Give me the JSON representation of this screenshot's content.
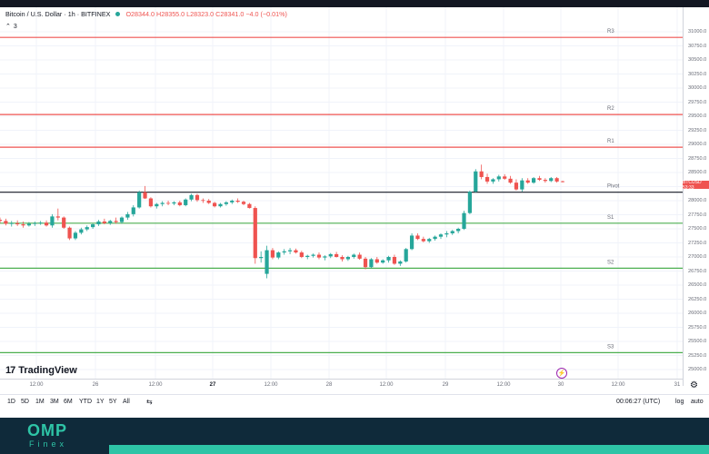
{
  "legend": {
    "symbol": "Bitcoin / U.S. Dollar · 1h · BITFINEX",
    "ohlc": "O28344.0 H28355.0 L28323.0 C28341.0 −4.0 (−0.01%)",
    "indicator_count": "3"
  },
  "price_axis": {
    "labels": [
      "31000.0",
      "30750.0",
      "30500.0",
      "30250.0",
      "30000.0",
      "29750.0",
      "29500.0",
      "29250.0",
      "29000.0",
      "28750.0",
      "28500.0",
      "28250.0",
      "28000.0",
      "27750.0",
      "27500.0",
      "27250.0",
      "27000.0",
      "26750.0",
      "26500.0",
      "26250.0",
      "26000.0",
      "25750.0",
      "25500.0",
      "25250.0",
      "25000.0"
    ],
    "current_tag": "BTCUSD 53:33"
  },
  "pivot_levels": [
    {
      "label": "R3",
      "price": 30900,
      "color": "#ef5350"
    },
    {
      "label": "R2",
      "price": 29530,
      "color": "#ef5350"
    },
    {
      "label": "R1",
      "price": 28950,
      "color": "#ef5350"
    },
    {
      "label": "Pivot",
      "price": 28150,
      "color": "#131722"
    },
    {
      "label": "S1",
      "price": 27600,
      "color": "#4caf50"
    },
    {
      "label": "S2",
      "price": 26800,
      "color": "#4caf50"
    },
    {
      "label": "S3",
      "price": 25300,
      "color": "#4caf50"
    }
  ],
  "time_axis": {
    "labels": [
      {
        "text": "12:00",
        "bold": false
      },
      {
        "text": "26",
        "bold": false
      },
      {
        "text": "12:00",
        "bold": false
      },
      {
        "text": "27",
        "bold": true
      },
      {
        "text": "12:00",
        "bold": false
      },
      {
        "text": "28",
        "bold": false
      },
      {
        "text": "12:00",
        "bold": false
      },
      {
        "text": "29",
        "bold": false
      },
      {
        "text": "12:00",
        "bold": false
      },
      {
        "text": "30",
        "bold": false
      },
      {
        "text": "12:00",
        "bold": false
      },
      {
        "text": "31",
        "bold": false
      }
    ]
  },
  "brand_logo": "TradingView",
  "bottom_toolbar": {
    "ranges": [
      "1D",
      "5D",
      "1M",
      "3M",
      "6M",
      "YTD",
      "1Y",
      "5Y",
      "All"
    ],
    "clock": "00:06:27 (UTC)",
    "log_label": "log",
    "auto_label": "auto"
  },
  "footer": {
    "brand_top": "OMP",
    "brand_bottom": "Finex"
  },
  "colors": {
    "up": "#26a69a",
    "down": "#ef5350",
    "bg": "#ffffff"
  },
  "chart_data": {
    "type": "candlestick",
    "ylim": [
      25000,
      31000
    ],
    "candles": [
      [
        27660,
        27700,
        27600,
        27640
      ],
      [
        27640,
        27680,
        27560,
        27590
      ],
      [
        27590,
        27640,
        27540,
        27600
      ],
      [
        27600,
        27650,
        27550,
        27580
      ],
      [
        27580,
        27630,
        27520,
        27560
      ],
      [
        27560,
        27620,
        27540,
        27590
      ],
      [
        27590,
        27630,
        27550,
        27600
      ],
      [
        27600,
        27640,
        27570,
        27610
      ],
      [
        27610,
        27650,
        27540,
        27560
      ],
      [
        27560,
        27760,
        27520,
        27720
      ],
      [
        27720,
        27860,
        27650,
        27700
      ],
      [
        27700,
        27720,
        27500,
        27520
      ],
      [
        27520,
        27540,
        27300,
        27330
      ],
      [
        27330,
        27460,
        27300,
        27430
      ],
      [
        27430,
        27520,
        27400,
        27490
      ],
      [
        27490,
        27560,
        27460,
        27530
      ],
      [
        27530,
        27600,
        27500,
        27580
      ],
      [
        27580,
        27660,
        27550,
        27630
      ],
      [
        27630,
        27680,
        27580,
        27600
      ],
      [
        27600,
        27660,
        27570,
        27640
      ],
      [
        27640,
        27700,
        27590,
        27620
      ],
      [
        27620,
        27720,
        27590,
        27700
      ],
      [
        27700,
        27800,
        27660,
        27760
      ],
      [
        27760,
        27920,
        27720,
        27880
      ],
      [
        27880,
        28180,
        27860,
        28150
      ],
      [
        28150,
        28260,
        28030,
        28040
      ],
      [
        28040,
        28060,
        27880,
        27900
      ],
      [
        27900,
        27960,
        27860,
        27940
      ],
      [
        27940,
        27990,
        27900,
        27960
      ],
      [
        27960,
        28000,
        27920,
        27950
      ],
      [
        27950,
        27990,
        27920,
        27970
      ],
      [
        27970,
        28000,
        27900,
        27920
      ],
      [
        27920,
        28040,
        27900,
        28020
      ],
      [
        28020,
        28120,
        27990,
        28100
      ],
      [
        28100,
        28120,
        27980,
        28010
      ],
      [
        28010,
        28040,
        27960,
        28000
      ],
      [
        28000,
        28030,
        27940,
        27960
      ],
      [
        27960,
        27980,
        27880,
        27900
      ],
      [
        27900,
        27960,
        27880,
        27940
      ],
      [
        27940,
        27990,
        27910,
        27970
      ],
      [
        27970,
        28020,
        27940,
        28000
      ],
      [
        28000,
        28040,
        27960,
        27980
      ],
      [
        27980,
        28000,
        27920,
        27940
      ],
      [
        27940,
        27960,
        27860,
        27870
      ],
      [
        27870,
        27900,
        26880,
        26980
      ],
      [
        26980,
        27100,
        26900,
        27000
      ],
      [
        26700,
        27200,
        26620,
        27120
      ],
      [
        27120,
        27160,
        26960,
        26990
      ],
      [
        26990,
        27100,
        26960,
        27080
      ],
      [
        27080,
        27140,
        27040,
        27100
      ],
      [
        27100,
        27160,
        27050,
        27120
      ],
      [
        27120,
        27150,
        27060,
        27080
      ],
      [
        27080,
        27110,
        26980,
        27000
      ],
      [
        27000,
        27040,
        26960,
        27020
      ],
      [
        27020,
        27060,
        26990,
        27040
      ],
      [
        27040,
        27080,
        26960,
        26990
      ],
      [
        26990,
        27030,
        26940,
        27010
      ],
      [
        27010,
        27070,
        26980,
        27050
      ],
      [
        27050,
        27090,
        26990,
        27000
      ],
      [
        27000,
        27030,
        26920,
        26960
      ],
      [
        26960,
        27020,
        26930,
        27000
      ],
      [
        27000,
        27060,
        26970,
        27040
      ],
      [
        27040,
        27080,
        26950,
        26970
      ],
      [
        26970,
        27000,
        26780,
        26820
      ],
      [
        26820,
        26980,
        26800,
        26960
      ],
      [
        26960,
        27000,
        26880,
        26900
      ],
      [
        26900,
        26960,
        26880,
        26940
      ],
      [
        26940,
        27020,
        26900,
        27000
      ],
      [
        27000,
        27040,
        26860,
        26880
      ],
      [
        26880,
        26940,
        26840,
        26920
      ],
      [
        26920,
        27160,
        26900,
        27140
      ],
      [
        27140,
        27420,
        27120,
        27380
      ],
      [
        27380,
        27420,
        27300,
        27320
      ],
      [
        27320,
        27360,
        27260,
        27280
      ],
      [
        27280,
        27340,
        27250,
        27320
      ],
      [
        27320,
        27380,
        27290,
        27360
      ],
      [
        27360,
        27420,
        27320,
        27400
      ],
      [
        27400,
        27460,
        27350,
        27420
      ],
      [
        27420,
        27480,
        27390,
        27460
      ],
      [
        27460,
        27520,
        27420,
        27500
      ],
      [
        27500,
        27820,
        27480,
        27780
      ],
      [
        27780,
        28180,
        27760,
        28160
      ],
      [
        28160,
        28560,
        28140,
        28520
      ],
      [
        28520,
        28640,
        28380,
        28420
      ],
      [
        28420,
        28480,
        28300,
        28340
      ],
      [
        28340,
        28400,
        28300,
        28380
      ],
      [
        28380,
        28460,
        28340,
        28430
      ],
      [
        28430,
        28470,
        28370,
        28390
      ],
      [
        28390,
        28440,
        28300,
        28320
      ],
      [
        28320,
        28380,
        28180,
        28200
      ],
      [
        28200,
        28400,
        28160,
        28360
      ],
      [
        28360,
        28400,
        28300,
        28320
      ],
      [
        28320,
        28420,
        28300,
        28400
      ],
      [
        28400,
        28440,
        28350,
        28370
      ],
      [
        28370,
        28400,
        28320,
        28350
      ],
      [
        28350,
        28420,
        28330,
        28400
      ],
      [
        28400,
        28420,
        28320,
        28340
      ],
      [
        28344,
        28355,
        28323,
        28341
      ]
    ]
  }
}
